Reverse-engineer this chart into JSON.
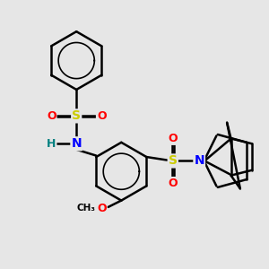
{
  "background_color": "#E6E6E6",
  "line_color": "#000000",
  "bond_width": 1.8,
  "atom_colors": {
    "S": "#CCCC00",
    "O": "#FF0000",
    "N": "#0000FF",
    "H": "#008080",
    "C": "#000000"
  },
  "fig_width": 3.0,
  "fig_height": 3.0,
  "dpi": 100
}
